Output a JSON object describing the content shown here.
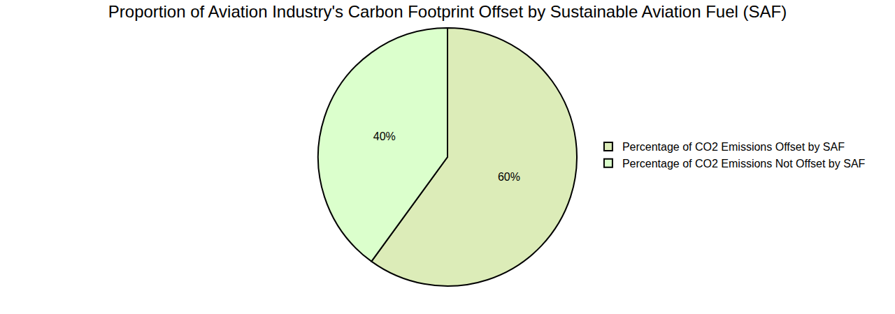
{
  "chart_data": {
    "type": "pie",
    "title": "Proportion of Aviation Industry's Carbon Footprint Offset by Sustainable Aviation Fuel (SAF)",
    "categories": [
      "Percentage of CO2 Emissions Offset by SAF",
      "Percentage of CO2 Emissions Not Offset by SAF"
    ],
    "values": [
      60,
      40
    ],
    "value_labels": [
      "60%",
      "40%"
    ],
    "colors": [
      "#dcecb8",
      "#dbffcc"
    ],
    "data_labels": true,
    "legend": "right"
  }
}
